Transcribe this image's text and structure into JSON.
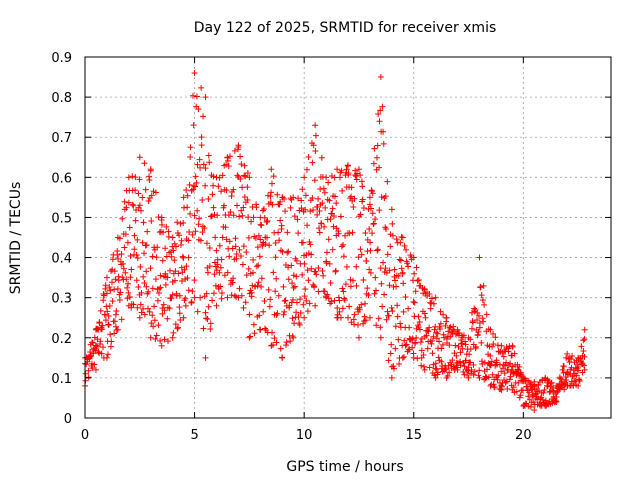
{
  "chart_data": {
    "type": "scatter",
    "title": "Day 122 of 2025, SRMTID for receiver xmis",
    "xlabel": "GPS time / hours",
    "ylabel": "SRMTID / TECUs",
    "xlim": [
      0,
      24
    ],
    "ylim": [
      0,
      0.9
    ],
    "x_ticks": [
      0,
      5,
      10,
      15,
      20
    ],
    "x_tick_labels": [
      "0",
      "5",
      "10",
      "15",
      "20"
    ],
    "y_ticks": [
      0,
      0.1,
      0.2,
      0.3,
      0.4,
      0.5,
      0.6,
      0.7,
      0.8,
      0.9
    ],
    "y_tick_labels": [
      "0",
      "0.1",
      "0.2",
      "0.3",
      "0.4",
      "0.5",
      "0.6",
      "0.7",
      "0.8",
      "0.9"
    ],
    "grid": true,
    "marker": "+",
    "series": [
      {
        "name": "SRMTID",
        "color": "#ff0000",
        "envelope_x": [
          0,
          0.5,
          1,
          1.5,
          2,
          2.5,
          3,
          3.5,
          4,
          4.5,
          5,
          5.5,
          6,
          6.5,
          7,
          7.5,
          8,
          8.5,
          9,
          9.5,
          10,
          10.5,
          11,
          11.5,
          12,
          12.5,
          13,
          13.5,
          14,
          14.5,
          15,
          15.5,
          16,
          16.5,
          17,
          17.5,
          18,
          18.5,
          19,
          19.5,
          20,
          20.5,
          21,
          21.5,
          22,
          22.5,
          22.8
        ],
        "envelope_low": [
          0.08,
          0.12,
          0.15,
          0.22,
          0.28,
          0.25,
          0.2,
          0.18,
          0.2,
          0.25,
          0.3,
          0.15,
          0.28,
          0.3,
          0.3,
          0.2,
          0.22,
          0.18,
          0.15,
          0.2,
          0.25,
          0.28,
          0.3,
          0.25,
          0.25,
          0.2,
          0.25,
          0.2,
          0.1,
          0.15,
          0.15,
          0.12,
          0.1,
          0.1,
          0.12,
          0.1,
          0.1,
          0.08,
          0.07,
          0.07,
          0.03,
          0.02,
          0.03,
          0.04,
          0.08,
          0.08,
          0.12
        ],
        "envelope_high": [
          0.15,
          0.22,
          0.35,
          0.45,
          0.6,
          0.65,
          0.62,
          0.5,
          0.45,
          0.55,
          0.86,
          0.8,
          0.6,
          0.65,
          0.68,
          0.6,
          0.5,
          0.62,
          0.55,
          0.55,
          0.6,
          0.73,
          0.6,
          0.62,
          0.63,
          0.62,
          0.55,
          0.85,
          0.52,
          0.45,
          0.4,
          0.32,
          0.3,
          0.25,
          0.22,
          0.2,
          0.4,
          0.22,
          0.18,
          0.18,
          0.1,
          0.09,
          0.1,
          0.08,
          0.16,
          0.15,
          0.22
        ]
      }
    ]
  }
}
